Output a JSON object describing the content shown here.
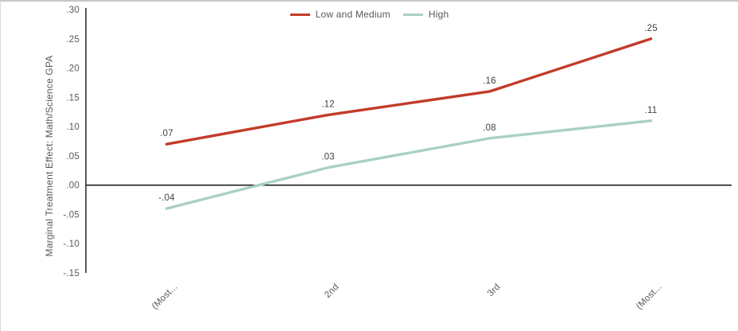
{
  "chart_data": {
    "type": "line",
    "title": "",
    "xlabel": "",
    "ylabel": "Marginal Treatment Effect: Math/Science GPA",
    "categories": [
      "(Most...",
      "2nd",
      "3rd",
      "(Most..."
    ],
    "series": [
      {
        "name": "Low and Medium",
        "color": "#c23b29",
        "values": [
          0.07,
          0.12,
          0.16,
          0.25
        ],
        "point_labels": [
          ".07",
          ".12",
          ".16",
          ".25"
        ]
      },
      {
        "name": "High",
        "color": "#aad0c5",
        "values": [
          -0.04,
          0.03,
          0.08,
          0.11
        ],
        "point_labels": [
          "-.04",
          ".03",
          ".08",
          ".11"
        ]
      }
    ],
    "y_ticks": [
      {
        "value": 0.3,
        "label": ".30"
      },
      {
        "value": 0.25,
        "label": ".25"
      },
      {
        "value": 0.2,
        "label": ".20"
      },
      {
        "value": 0.15,
        "label": ".15"
      },
      {
        "value": 0.1,
        "label": ".10"
      },
      {
        "value": 0.05,
        "label": ".05"
      },
      {
        "value": 0.0,
        "label": ".00"
      },
      {
        "value": -0.05,
        "label": "-.05"
      },
      {
        "value": -0.1,
        "label": "-.10"
      },
      {
        "value": -0.15,
        "label": "-.15"
      }
    ],
    "ylim": [
      -0.15,
      0.3
    ],
    "legend_position": "top-center",
    "grid": false,
    "zero_axis_line": true,
    "text_color": "#595959",
    "data_label_color": "#3f3f3f"
  }
}
